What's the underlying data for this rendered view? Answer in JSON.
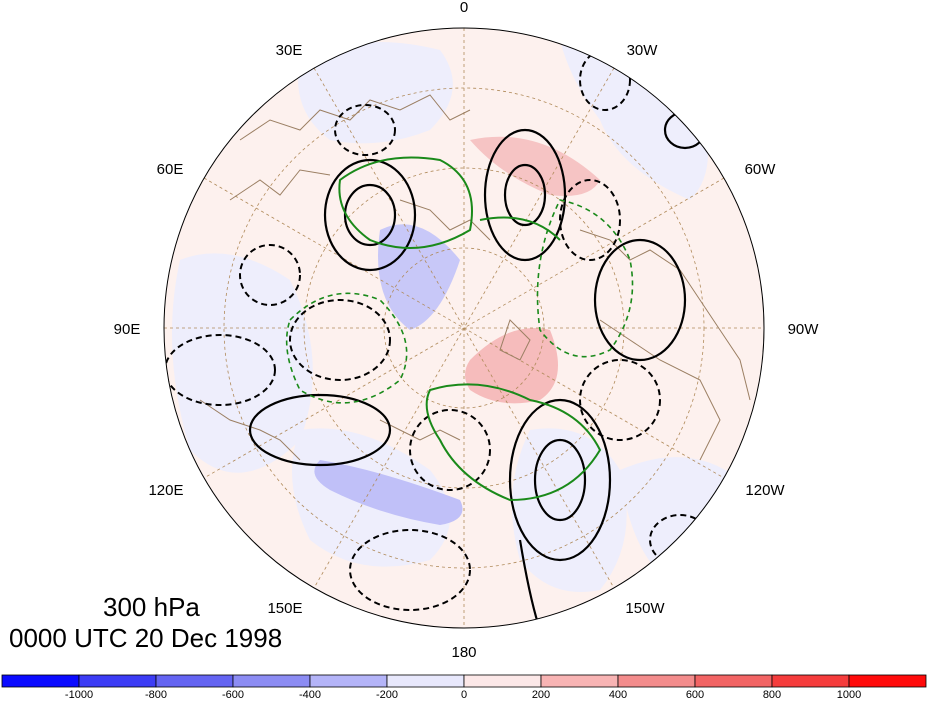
{
  "title": {
    "level": "300 hPa",
    "time": "0000 UTC 20 Dec 1998"
  },
  "longitude_labels": [
    {
      "id": "0",
      "text": "0"
    },
    {
      "id": "30w",
      "text": "30W"
    },
    {
      "id": "60w",
      "text": "60W"
    },
    {
      "id": "90w",
      "text": "90W"
    },
    {
      "id": "120w",
      "text": "120W"
    },
    {
      "id": "150w",
      "text": "150W"
    },
    {
      "id": "180",
      "text": "180"
    },
    {
      "id": "150e",
      "text": "150E"
    },
    {
      "id": "120e",
      "text": "120E"
    },
    {
      "id": "90e",
      "text": "90E"
    },
    {
      "id": "60e",
      "text": "60E"
    },
    {
      "id": "30e",
      "text": "30E"
    }
  ],
  "colorbar": {
    "ticks": [
      "-1000",
      "-800",
      "-600",
      "-400",
      "-200",
      "0",
      "200",
      "400",
      "600",
      "800",
      "1000"
    ],
    "colors": [
      "#0a0aff",
      "#3c3cf5",
      "#6464f2",
      "#8c8cf3",
      "#b4b4f8",
      "#e8e8fc",
      "#fce8e8",
      "#f8b4b4",
      "#f38c8c",
      "#f26464",
      "#f53c3c",
      "#ff0a0a"
    ]
  },
  "colors": {
    "coastline": "#9b7f63",
    "positive_contour": "#000000",
    "negative_contour": "#000000",
    "green_contour": "#1a8a1a",
    "gridline": "#b08a5a"
  }
}
